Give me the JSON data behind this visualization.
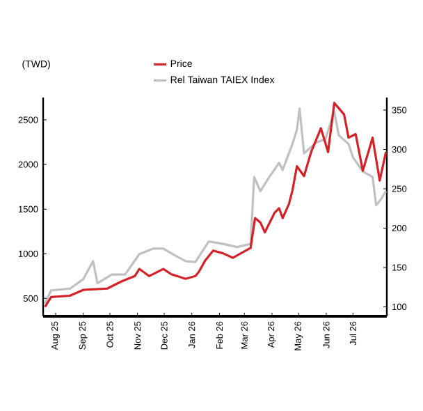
{
  "chart_data": {
    "type": "line",
    "ylabel": "(TWD)",
    "xlim": [
      "2025-07-18",
      "2026-08-08"
    ],
    "ylim": [
      300,
      2750
    ],
    "y2lim": [
      88,
      366
    ],
    "xticks": [
      {
        "value": "2025-08",
        "label": "Aug 25"
      },
      {
        "value": "2025-09",
        "label": "Sep 25"
      },
      {
        "value": "2025-10",
        "label": "Oct 25"
      },
      {
        "value": "2025-11",
        "label": "Nov 25"
      },
      {
        "value": "2025-12",
        "label": "Dec 25"
      },
      {
        "value": "2026-01",
        "label": "Jan 26"
      },
      {
        "value": "2026-02",
        "label": "Feb 26"
      },
      {
        "value": "2026-03",
        "label": "Mar 26"
      },
      {
        "value": "2026-04",
        "label": "Apr 26"
      },
      {
        "value": "2026-05",
        "label": "May 26"
      },
      {
        "value": "2026-06",
        "label": "Jun 26"
      },
      {
        "value": "2026-07",
        "label": "Jul 26"
      }
    ],
    "yticks": [
      500,
      1000,
      1500,
      2000,
      2500
    ],
    "y2ticks": [
      100,
      150,
      200,
      250,
      300,
      350
    ],
    "legend": "top",
    "series": [
      {
        "name": "Price",
        "color": "#d42027",
        "x": [
          "2025-07-20",
          "2025-07-27",
          "2025-08-17",
          "2025-09-01",
          "2025-09-28",
          "2025-10-14",
          "2025-10-29",
          "2025-11-03",
          "2025-11-14",
          "2025-11-30",
          "2025-12-09",
          "2025-12-25",
          "2026-01-05",
          "2026-01-09",
          "2026-01-16",
          "2026-01-25",
          "2026-02-05",
          "2026-02-16",
          "2026-03-08",
          "2026-03-13",
          "2026-03-19",
          "2026-03-24",
          "2026-04-04",
          "2026-04-09",
          "2026-04-13",
          "2026-04-20",
          "2026-04-24",
          "2026-04-29",
          "2026-05-07",
          "2026-05-15",
          "2026-05-26",
          "2026-06-03",
          "2026-06-10",
          "2026-06-21",
          "2026-06-26",
          "2026-07-04",
          "2026-07-12",
          "2026-07-23",
          "2026-07-31",
          "2026-08-07"
        ],
        "values": [
          405,
          515,
          530,
          595,
          610,
          690,
          750,
          830,
          750,
          830,
          770,
          720,
          750,
          800,
          925,
          1035,
          1005,
          955,
          1065,
          1400,
          1350,
          1240,
          1460,
          1510,
          1400,
          1555,
          1710,
          1980,
          1870,
          2140,
          2405,
          2140,
          2690,
          2560,
          2300,
          2340,
          1930,
          2300,
          1820,
          2140
        ]
      },
      {
        "name": "Rel Taiwan TAIEX Index",
        "color": "#c0c0c0",
        "axis": "y2",
        "x": [
          "2025-07-20",
          "2025-07-27",
          "2025-08-17",
          "2025-09-01",
          "2025-09-12",
          "2025-09-17",
          "2025-10-03",
          "2025-10-18",
          "2025-11-03",
          "2025-11-19",
          "2025-11-30",
          "2025-12-12",
          "2025-12-25",
          "2026-01-05",
          "2026-01-20",
          "2026-02-05",
          "2026-02-21",
          "2026-03-08",
          "2026-03-12",
          "2026-03-19",
          "2026-03-29",
          "2026-04-09",
          "2026-04-13",
          "2026-04-24",
          "2026-04-29",
          "2026-05-02",
          "2026-05-07",
          "2026-05-21",
          "2026-05-31",
          "2026-06-10",
          "2026-06-15",
          "2026-06-26",
          "2026-07-01",
          "2026-07-12",
          "2026-07-23",
          "2026-07-27",
          "2026-08-01",
          "2026-08-07"
        ],
        "values": [
          104,
          121,
          123,
          135,
          158,
          130,
          141,
          141,
          167,
          174,
          174,
          166,
          158,
          157,
          183,
          180,
          176,
          180,
          265,
          247,
          265,
          283,
          274,
          307,
          325,
          352,
          295,
          309,
          313,
          348,
          318,
          307,
          290,
          272,
          265,
          229,
          236,
          247
        ]
      }
    ]
  }
}
